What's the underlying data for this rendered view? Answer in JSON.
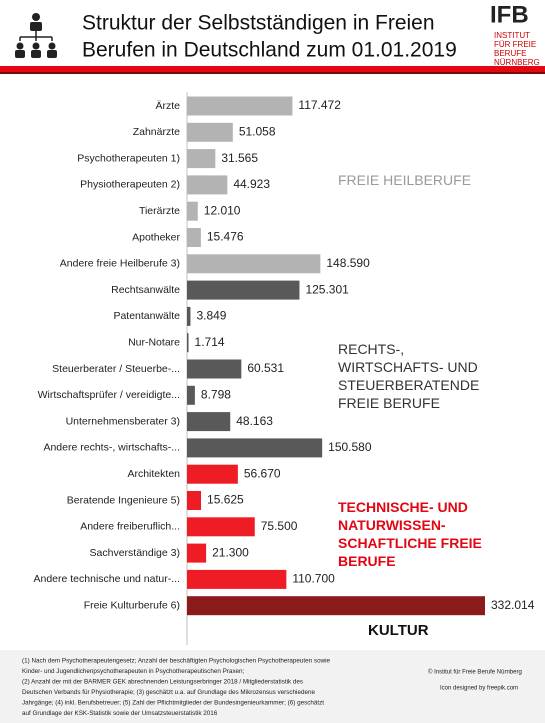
{
  "chart_data": {
    "type": "bar",
    "title": [
      "Struktur der Selbstständigen in Freien",
      "Berufen in Deutschland zum 01.01.2019"
    ],
    "categories": [
      "Ärzte",
      "Zahnärzte",
      "Psychotherapeuten  1)",
      "Physiotherapeuten 2)",
      "Tierärzte",
      "Apotheker",
      "Andere freie Heilberufe 3)",
      "Rechtsanwälte",
      "Patentanwälte",
      "Nur-Notare",
      "Steuerberater / Steuerbe-...",
      "Wirtschaftsprüfer / vereidigte...",
      "Unternehmensberater 3)",
      "Andere rechts-, wirtschafts-...",
      "Architekten",
      "Beratende Ingenieure 5)",
      "Andere freiberuflich...",
      "Sachverständige 3)",
      "Andere technische und natur-...",
      "Freie Kulturberufe 6)"
    ],
    "series": [
      {
        "name": "FREIE HEILBERUFE",
        "color": "#b3b3b3",
        "values": [
          117472,
          51058,
          31565,
          44923,
          12010,
          15476,
          148590,
          null,
          null,
          null,
          null,
          null,
          null,
          null,
          null,
          null,
          null,
          null,
          null,
          null
        ],
        "value_labels": [
          "117.472",
          "51.058",
          "31.565",
          "44.923",
          "12.010",
          "15.476",
          "148.590",
          null,
          null,
          null,
          null,
          null,
          null,
          null,
          null,
          null,
          null,
          null,
          null,
          null
        ]
      },
      {
        "name": "RECHTS-,\nWIRTSCHAFTS-  UND\nSTEUERBERATENDE\nFREIE BERUFE",
        "color": "#595959",
        "values": [
          null,
          null,
          null,
          null,
          null,
          null,
          null,
          125301,
          3849,
          1714,
          60531,
          8798,
          48163,
          150580,
          null,
          null,
          null,
          null,
          null,
          null
        ],
        "value_labels": [
          null,
          null,
          null,
          null,
          null,
          null,
          null,
          "125.301",
          "3.849",
          "1.714",
          "60.531",
          "8.798",
          "48.163",
          "150.580",
          null,
          null,
          null,
          null,
          null,
          null
        ]
      },
      {
        "name": "TECHNISCHE- UND\nNATURWISSEN-\nSCHAFTLICHE FREIE\nBERUFE",
        "color": "#ee1c25",
        "values": [
          null,
          null,
          null,
          null,
          null,
          null,
          null,
          null,
          null,
          null,
          null,
          null,
          null,
          null,
          56670,
          15625,
          75500,
          21300,
          110700,
          null
        ],
        "value_labels": [
          null,
          null,
          null,
          null,
          null,
          null,
          null,
          null,
          null,
          null,
          null,
          null,
          null,
          null,
          "56.670",
          "15.625",
          "75.500",
          "21.300",
          "110.700",
          null
        ]
      },
      {
        "name": "KULTUR",
        "color": "#8b1a1a",
        "values": [
          null,
          null,
          null,
          null,
          null,
          null,
          null,
          null,
          null,
          null,
          null,
          null,
          null,
          null,
          null,
          null,
          null,
          null,
          null,
          332014
        ],
        "value_labels": [
          null,
          null,
          null,
          null,
          null,
          null,
          null,
          null,
          null,
          null,
          null,
          null,
          null,
          null,
          null,
          null,
          null,
          null,
          null,
          "332.014"
        ]
      }
    ]
  },
  "logo": {
    "mark": "IFB",
    "lines": [
      "INSTITUT",
      "FÜR FREIE",
      "BERUFE",
      "NÜRNBERG"
    ]
  },
  "footer": {
    "notes": [
      "(1) Nach dem Psychotherapeutengesetz; Anzahl der  beschäftigten Psychologischen Psychotherapeuten sowie",
      "Kinder- und Jugendlichenpsychotherapeuten in Psychotherapeutischen Praxen;",
      "(2) Anzahl der mit der BARMER GEK abrechnenden Leistungserbringer 2018 / Mitgliederstatistik des",
      "Deutschen Verbands für Physiotherapie; (3) geschätzt u.a. auf Grundlage des Mikrozensus verschiedene",
      "Jahrgänge; (4) inkl. Berufsbetreuer; (5) Zahl der Pflichtmitglieder der Bundesingenieurkammer; (6) geschätzt",
      "auf Grundlage der KSK-Statistik sowie der Umsatzsteuerstatistik 2016"
    ],
    "copyright": "© Institut für Freie Berufe Nürnberg",
    "credit": "Icon designed by freepik.com"
  }
}
